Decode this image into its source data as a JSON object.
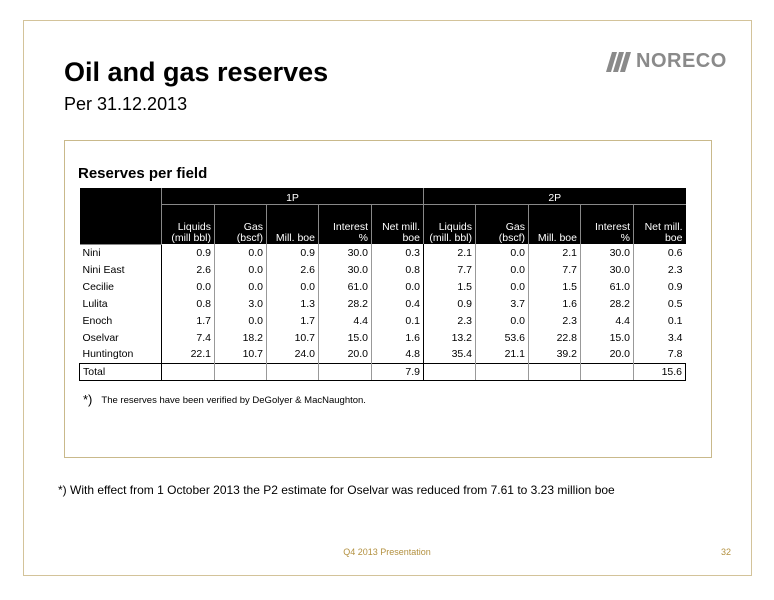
{
  "slide": {
    "title": "Oil and gas reserves",
    "subtitle": "Per 31.12.2013",
    "logo_text": "NORECO",
    "panel_title": "Reserves per field",
    "footnote_mark": "*)",
    "footnote_text": "The reserves have been verified by DeGolyer & MacNaughton.",
    "note": "*) With effect from 1 October 2013 the P2 estimate for Oselvar was reduced from 7.61 to 3.23 million boe",
    "footer_text": "Q4 2013 Presentation",
    "page_number": "32"
  },
  "table": {
    "groups": [
      "1P",
      "2P"
    ],
    "headers_1p": [
      "Liquids (mill bbl)",
      "Gas (bscf)",
      "Mill. boe",
      "Interest %",
      "Net mill. boe"
    ],
    "headers_2p": [
      "Liquids (mill. bbl)",
      "Gas (bscf)",
      "Mill. boe",
      "Interest %",
      "Net mill. boe"
    ],
    "rows": [
      {
        "field": "Nini",
        "v": [
          "0.9",
          "0.0",
          "0.9",
          "30.0",
          "0.3",
          "2.1",
          "0.0",
          "2.1",
          "30.0",
          "0.6"
        ]
      },
      {
        "field": "Nini East",
        "v": [
          "2.6",
          "0.0",
          "2.6",
          "30.0",
          "0.8",
          "7.7",
          "0.0",
          "7.7",
          "30.0",
          "2.3"
        ]
      },
      {
        "field": "Cecilie",
        "v": [
          "0.0",
          "0.0",
          "0.0",
          "61.0",
          "0.0",
          "1.5",
          "0.0",
          "1.5",
          "61.0",
          "0.9"
        ]
      },
      {
        "field": "Lulita",
        "v": [
          "0.8",
          "3.0",
          "1.3",
          "28.2",
          "0.4",
          "0.9",
          "3.7",
          "1.6",
          "28.2",
          "0.5"
        ]
      },
      {
        "field": "Enoch",
        "v": [
          "1.7",
          "0.0",
          "1.7",
          "4.4",
          "0.1",
          "2.3",
          "0.0",
          "2.3",
          "4.4",
          "0.1"
        ]
      },
      {
        "field": "Oselvar",
        "v": [
          "7.4",
          "18.2",
          "10.7",
          "15.0",
          "1.6",
          "13.2",
          "53.6",
          "22.8",
          "15.0",
          "3.4"
        ]
      },
      {
        "field": "Huntington",
        "v": [
          "22.1",
          "10.7",
          "24.0",
          "20.0",
          "4.8",
          "35.4",
          "21.1",
          "39.2",
          "20.0",
          "7.8"
        ]
      }
    ],
    "total": {
      "label": "Total",
      "net_1p": "7.9",
      "net_2p": "15.6"
    }
  },
  "colors": {
    "frame": "#d3c39a",
    "accent": "#b39140",
    "logo": "#8a8a8a",
    "header_bg": "#000000"
  }
}
